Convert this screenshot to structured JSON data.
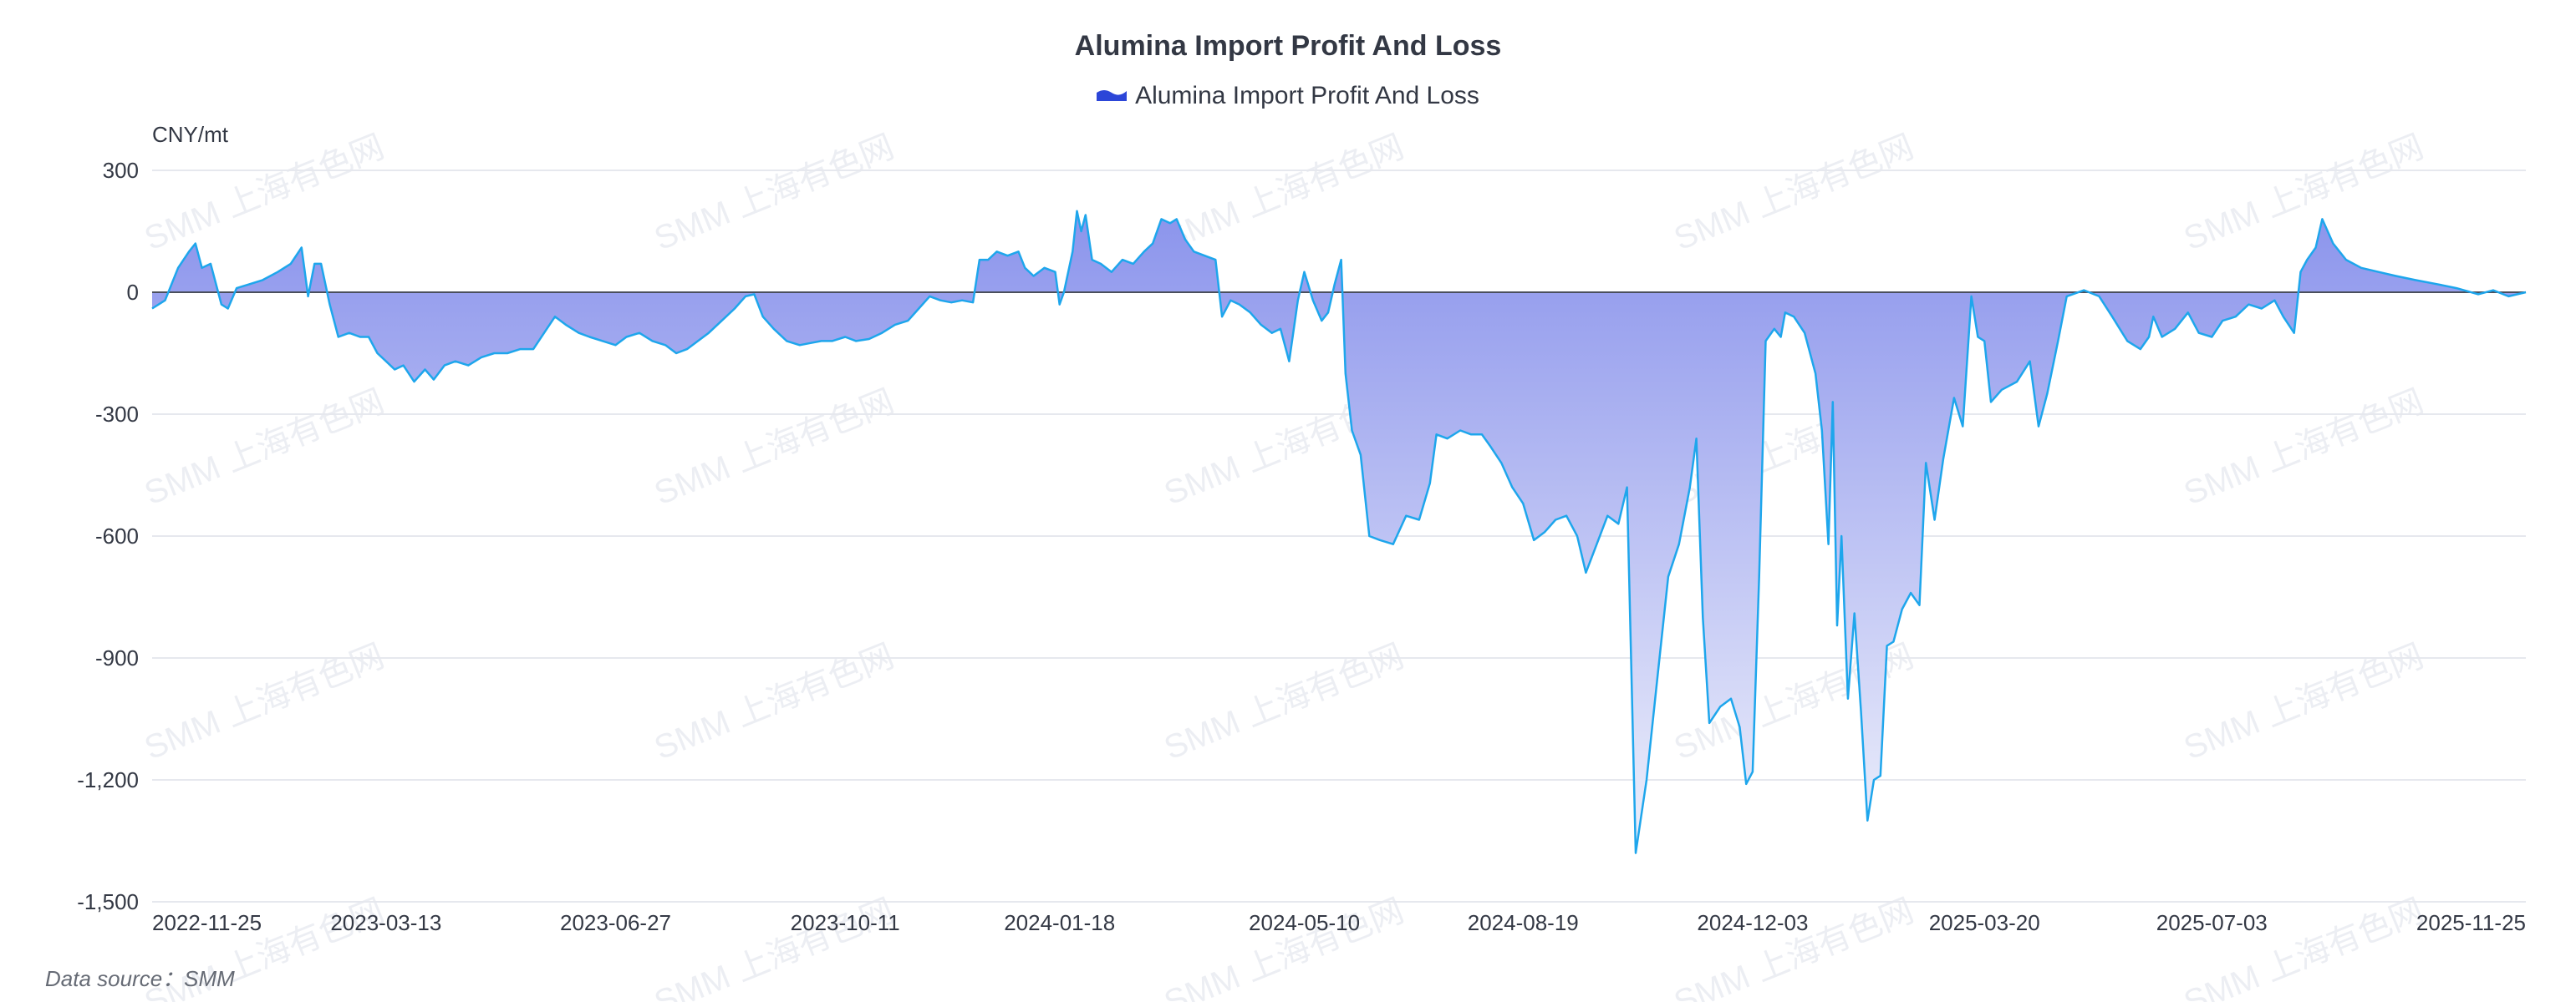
{
  "title": "Alumina Import Profit And Loss",
  "legend_label": "Alumina Import Profit And Loss",
  "unit": "CNY/mt",
  "source": "Data source：SMM",
  "watermark": "SMM 上海有色网",
  "colors": {
    "line": "#1ea6ec",
    "area_top": "#8b94ec",
    "area_bottom": "#eef0fb",
    "zero_line": "#4a4f5c",
    "grid": "#e6e8ee",
    "legend_icon": "#2c46d8"
  },
  "chart_data": {
    "type": "area",
    "title": "Alumina Import Profit And Loss",
    "ylabel": "CNY/mt",
    "ylim": [
      -1500,
      300
    ],
    "yticks": [
      300,
      0,
      -300,
      -600,
      -900,
      -1200,
      -1500
    ],
    "ytick_labels": [
      "300",
      "0",
      "-300",
      "-600",
      "-900",
      "-1,200",
      "-1,500"
    ],
    "xlim": [
      "2022-11-25",
      "2025-11-25"
    ],
    "xticks": [
      "2022-11-25",
      "2023-03-13",
      "2023-06-27",
      "2023-10-11",
      "2024-01-18",
      "2024-05-10",
      "2024-08-19",
      "2024-12-03",
      "2025-03-20",
      "2025-07-03",
      "2025-11-25"
    ],
    "grid": true,
    "legend_position": "top-center",
    "series": [
      {
        "name": "Alumina Import Profit And Loss",
        "points": [
          [
            "2022-11-25",
            -40
          ],
          [
            "2022-12-01",
            -20
          ],
          [
            "2022-12-07",
            60
          ],
          [
            "2022-12-12",
            100
          ],
          [
            "2022-12-15",
            120
          ],
          [
            "2022-12-18",
            60
          ],
          [
            "2022-12-22",
            70
          ],
          [
            "2022-12-27",
            -30
          ],
          [
            "2022-12-30",
            -40
          ],
          [
            "2023-01-03",
            10
          ],
          [
            "2023-01-09",
            20
          ],
          [
            "2023-01-15",
            30
          ],
          [
            "2023-01-22",
            50
          ],
          [
            "2023-01-28",
            70
          ],
          [
            "2023-02-02",
            110
          ],
          [
            "2023-02-05",
            -10
          ],
          [
            "2023-02-08",
            70
          ],
          [
            "2023-02-11",
            70
          ],
          [
            "2023-02-15",
            -30
          ],
          [
            "2023-02-19",
            -110
          ],
          [
            "2023-02-24",
            -100
          ],
          [
            "2023-03-01",
            -110
          ],
          [
            "2023-03-05",
            -110
          ],
          [
            "2023-03-09",
            -150
          ],
          [
            "2023-03-13",
            -170
          ],
          [
            "2023-03-17",
            -190
          ],
          [
            "2023-03-21",
            -180
          ],
          [
            "2023-03-26",
            -220
          ],
          [
            "2023-03-31",
            -190
          ],
          [
            "2023-04-04",
            -215
          ],
          [
            "2023-04-09",
            -180
          ],
          [
            "2023-04-14",
            -170
          ],
          [
            "2023-04-20",
            -180
          ],
          [
            "2023-04-26",
            -160
          ],
          [
            "2023-05-02",
            -150
          ],
          [
            "2023-05-08",
            -150
          ],
          [
            "2023-05-14",
            -140
          ],
          [
            "2023-05-20",
            -140
          ],
          [
            "2023-05-25",
            -100
          ],
          [
            "2023-05-30",
            -60
          ],
          [
            "2023-06-04",
            -80
          ],
          [
            "2023-06-10",
            -100
          ],
          [
            "2023-06-15",
            -110
          ],
          [
            "2023-06-21",
            -120
          ],
          [
            "2023-06-27",
            -130
          ],
          [
            "2023-07-02",
            -110
          ],
          [
            "2023-07-08",
            -100
          ],
          [
            "2023-07-14",
            -120
          ],
          [
            "2023-07-20",
            -130
          ],
          [
            "2023-07-25",
            -150
          ],
          [
            "2023-07-30",
            -140
          ],
          [
            "2023-08-04",
            -120
          ],
          [
            "2023-08-09",
            -100
          ],
          [
            "2023-08-15",
            -70
          ],
          [
            "2023-08-21",
            -40
          ],
          [
            "2023-08-26",
            -10
          ],
          [
            "2023-08-30",
            -5
          ],
          [
            "2023-09-03",
            -60
          ],
          [
            "2023-09-08",
            -90
          ],
          [
            "2023-09-14",
            -120
          ],
          [
            "2023-09-20",
            -130
          ],
          [
            "2023-09-25",
            -125
          ],
          [
            "2023-09-30",
            -120
          ],
          [
            "2023-10-05",
            -120
          ],
          [
            "2023-10-11",
            -110
          ],
          [
            "2023-10-16",
            -120
          ],
          [
            "2023-10-22",
            -115
          ],
          [
            "2023-10-28",
            -100
          ],
          [
            "2023-11-03",
            -80
          ],
          [
            "2023-11-09",
            -70
          ],
          [
            "2023-11-14",
            -40
          ],
          [
            "2023-11-19",
            -10
          ],
          [
            "2023-11-24",
            -20
          ],
          [
            "2023-11-29",
            -25
          ],
          [
            "2023-12-04",
            -20
          ],
          [
            "2023-12-09",
            -25
          ],
          [
            "2023-12-12",
            80
          ],
          [
            "2023-12-16",
            80
          ],
          [
            "2023-12-20",
            100
          ],
          [
            "2023-12-25",
            90
          ],
          [
            "2023-12-30",
            100
          ],
          [
            "2024-01-02",
            60
          ],
          [
            "2024-01-06",
            40
          ],
          [
            "2024-01-11",
            60
          ],
          [
            "2024-01-16",
            50
          ],
          [
            "2024-01-18",
            -30
          ],
          [
            "2024-01-20",
            0
          ],
          [
            "2024-01-24",
            100
          ],
          [
            "2024-01-26",
            200
          ],
          [
            "2024-01-28",
            150
          ],
          [
            "2024-01-30",
            190
          ],
          [
            "2024-02-02",
            80
          ],
          [
            "2024-02-06",
            70
          ],
          [
            "2024-02-11",
            50
          ],
          [
            "2024-02-16",
            80
          ],
          [
            "2024-02-21",
            70
          ],
          [
            "2024-02-26",
            100
          ],
          [
            "2024-03-01",
            120
          ],
          [
            "2024-03-05",
            180
          ],
          [
            "2024-03-09",
            170
          ],
          [
            "2024-03-12",
            180
          ],
          [
            "2024-03-16",
            130
          ],
          [
            "2024-03-20",
            100
          ],
          [
            "2024-03-25",
            90
          ],
          [
            "2024-03-30",
            80
          ],
          [
            "2024-04-02",
            -60
          ],
          [
            "2024-04-06",
            -20
          ],
          [
            "2024-04-10",
            -30
          ],
          [
            "2024-04-15",
            -50
          ],
          [
            "2024-04-20",
            -80
          ],
          [
            "2024-04-25",
            -100
          ],
          [
            "2024-04-29",
            -90
          ],
          [
            "2024-05-03",
            -170
          ],
          [
            "2024-05-07",
            -20
          ],
          [
            "2024-05-10",
            50
          ],
          [
            "2024-05-14",
            -20
          ],
          [
            "2024-05-18",
            -70
          ],
          [
            "2024-05-21",
            -50
          ],
          [
            "2024-05-24",
            20
          ],
          [
            "2024-05-27",
            80
          ],
          [
            "2024-05-29",
            -200
          ],
          [
            "2024-06-01",
            -340
          ],
          [
            "2024-06-05",
            -400
          ],
          [
            "2024-06-09",
            -600
          ],
          [
            "2024-06-14",
            -610
          ],
          [
            "2024-06-20",
            -620
          ],
          [
            "2024-06-26",
            -550
          ],
          [
            "2024-07-02",
            -560
          ],
          [
            "2024-07-07",
            -470
          ],
          [
            "2024-07-10",
            -350
          ],
          [
            "2024-07-15",
            -360
          ],
          [
            "2024-07-21",
            -340
          ],
          [
            "2024-07-26",
            -350
          ],
          [
            "2024-07-31",
            -350
          ],
          [
            "2024-08-04",
            -380
          ],
          [
            "2024-08-09",
            -420
          ],
          [
            "2024-08-14",
            -480
          ],
          [
            "2024-08-19",
            -520
          ],
          [
            "2024-08-24",
            -610
          ],
          [
            "2024-08-29",
            -590
          ],
          [
            "2024-09-03",
            -560
          ],
          [
            "2024-09-08",
            -550
          ],
          [
            "2024-09-13",
            -600
          ],
          [
            "2024-09-17",
            -690
          ],
          [
            "2024-09-22",
            -620
          ],
          [
            "2024-09-27",
            -550
          ],
          [
            "2024-10-02",
            -570
          ],
          [
            "2024-10-06",
            -480
          ],
          [
            "2024-10-10",
            -1380
          ],
          [
            "2024-10-15",
            -1200
          ],
          [
            "2024-10-20",
            -950
          ],
          [
            "2024-10-25",
            -700
          ],
          [
            "2024-10-30",
            -620
          ],
          [
            "2024-11-04",
            -480
          ],
          [
            "2024-11-07",
            -360
          ],
          [
            "2024-11-10",
            -800
          ],
          [
            "2024-11-13",
            -1060
          ],
          [
            "2024-11-18",
            -1020
          ],
          [
            "2024-11-23",
            -1000
          ],
          [
            "2024-11-27",
            -1070
          ],
          [
            "2024-11-30",
            -1210
          ],
          [
            "2024-12-03",
            -1180
          ],
          [
            "2024-12-06",
            -700
          ],
          [
            "2024-12-09",
            -120
          ],
          [
            "2024-12-13",
            -90
          ],
          [
            "2024-12-16",
            -110
          ],
          [
            "2024-12-18",
            -50
          ],
          [
            "2024-12-22",
            -60
          ],
          [
            "2024-12-27",
            -100
          ],
          [
            "2025-01-01",
            -200
          ],
          [
            "2025-01-04",
            -340
          ],
          [
            "2025-01-07",
            -620
          ],
          [
            "2025-01-09",
            -270
          ],
          [
            "2025-01-11",
            -820
          ],
          [
            "2025-01-13",
            -600
          ],
          [
            "2025-01-16",
            -1000
          ],
          [
            "2025-01-19",
            -790
          ],
          [
            "2025-01-22",
            -1030
          ],
          [
            "2025-01-25",
            -1300
          ],
          [
            "2025-01-28",
            -1200
          ],
          [
            "2025-01-31",
            -1190
          ],
          [
            "2025-02-03",
            -870
          ],
          [
            "2025-02-06",
            -860
          ],
          [
            "2025-02-10",
            -780
          ],
          [
            "2025-02-14",
            -740
          ],
          [
            "2025-02-18",
            -770
          ],
          [
            "2025-02-21",
            -420
          ],
          [
            "2025-02-25",
            -560
          ],
          [
            "2025-03-01",
            -410
          ],
          [
            "2025-03-06",
            -260
          ],
          [
            "2025-03-10",
            -330
          ],
          [
            "2025-03-14",
            -10
          ],
          [
            "2025-03-17",
            -110
          ],
          [
            "2025-03-20",
            -120
          ],
          [
            "2025-03-23",
            -270
          ],
          [
            "2025-03-28",
            -240
          ],
          [
            "2025-04-04",
            -220
          ],
          [
            "2025-04-10",
            -170
          ],
          [
            "2025-04-14",
            -330
          ],
          [
            "2025-04-18",
            -250
          ],
          [
            "2025-04-23",
            -120
          ],
          [
            "2025-04-27",
            -10
          ],
          [
            "2025-05-05",
            5
          ],
          [
            "2025-05-12",
            -10
          ],
          [
            "2025-05-18",
            -60
          ],
          [
            "2025-05-25",
            -120
          ],
          [
            "2025-05-31",
            -140
          ],
          [
            "2025-06-04",
            -110
          ],
          [
            "2025-06-06",
            -60
          ],
          [
            "2025-06-10",
            -110
          ],
          [
            "2025-06-16",
            -90
          ],
          [
            "2025-06-22",
            -50
          ],
          [
            "2025-06-27",
            -100
          ],
          [
            "2025-07-03",
            -110
          ],
          [
            "2025-07-08",
            -70
          ],
          [
            "2025-07-14",
            -60
          ],
          [
            "2025-07-20",
            -30
          ],
          [
            "2025-07-26",
            -40
          ],
          [
            "2025-08-01",
            -20
          ],
          [
            "2025-08-05",
            -60
          ],
          [
            "2025-08-10",
            -100
          ],
          [
            "2025-08-13",
            50
          ],
          [
            "2025-08-16",
            80
          ],
          [
            "2025-08-20",
            110
          ],
          [
            "2025-08-23",
            180
          ],
          [
            "2025-08-28",
            120
          ],
          [
            "2025-09-03",
            80
          ],
          [
            "2025-09-10",
            60
          ],
          [
            "2025-09-18",
            50
          ],
          [
            "2025-09-26",
            40
          ],
          [
            "2025-10-05",
            30
          ],
          [
            "2025-10-15",
            20
          ],
          [
            "2025-10-24",
            10
          ],
          [
            "2025-11-03",
            -5
          ],
          [
            "2025-11-10",
            5
          ],
          [
            "2025-11-17",
            -10
          ],
          [
            "2025-11-25",
            0
          ]
        ]
      }
    ]
  }
}
